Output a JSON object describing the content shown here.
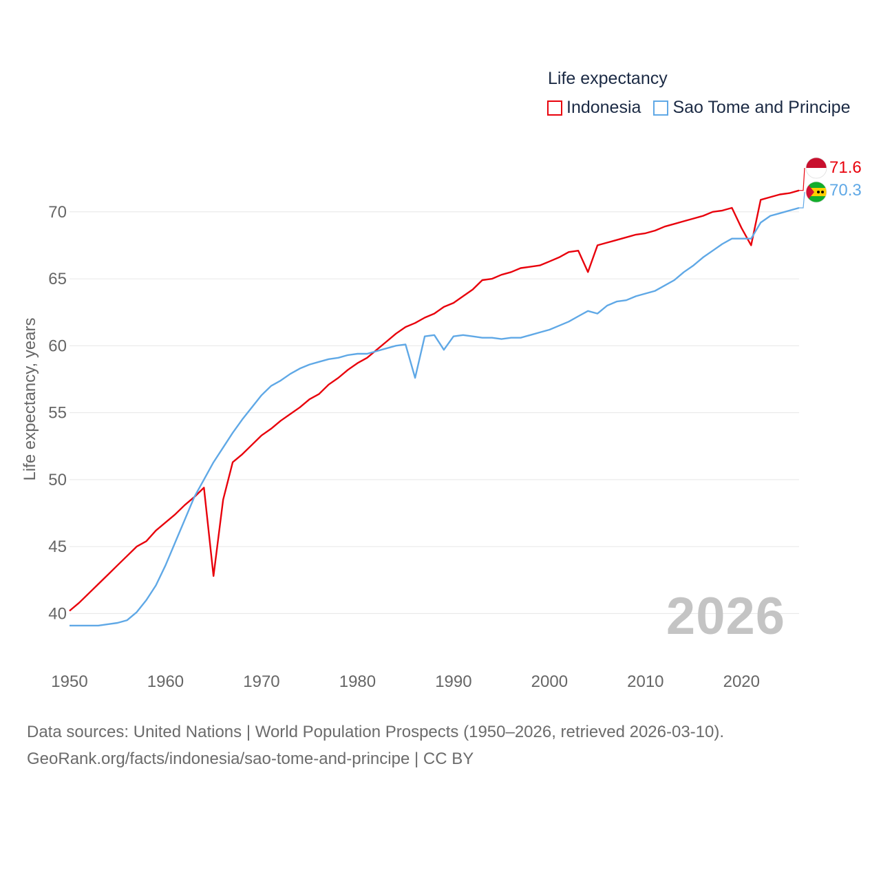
{
  "legend": {
    "title": "Life expectancy",
    "items": [
      "Indonesia",
      "Sao Tome and Principe"
    ]
  },
  "current_year": "2026",
  "footer": {
    "line1": "Data sources: United Nations | World Population Prospects (1950–2026, retrieved 2026-03-10).",
    "line2": "GeoRank.org/facts/indonesia/sao-tome-and-principe | CC BY"
  },
  "colors": {
    "indonesia": "#e8000b",
    "sao_tome": "#5fa8e6",
    "grid": "#e6e6e6",
    "axis_text": "#666666"
  },
  "chart_data": {
    "type": "line",
    "title": "Life expectancy",
    "xlabel": "",
    "ylabel": "Life expectancy, years",
    "xlim": [
      1950,
      2026
    ],
    "ylim": [
      37.5,
      74
    ],
    "x_ticks": [
      1950,
      1960,
      1970,
      1980,
      1990,
      2000,
      2010,
      2020
    ],
    "y_ticks": [
      40,
      45,
      50,
      55,
      60,
      65,
      70
    ],
    "grid": true,
    "legend_position": "top-right",
    "x": [
      1950,
      1951,
      1952,
      1953,
      1954,
      1955,
      1956,
      1957,
      1958,
      1959,
      1960,
      1961,
      1962,
      1963,
      1964,
      1965,
      1966,
      1967,
      1968,
      1969,
      1970,
      1971,
      1972,
      1973,
      1974,
      1975,
      1976,
      1977,
      1978,
      1979,
      1980,
      1981,
      1982,
      1983,
      1984,
      1985,
      1986,
      1987,
      1988,
      1989,
      1990,
      1991,
      1992,
      1993,
      1994,
      1995,
      1996,
      1997,
      1998,
      1999,
      2000,
      2001,
      2002,
      2003,
      2004,
      2005,
      2006,
      2007,
      2008,
      2009,
      2010,
      2011,
      2012,
      2013,
      2014,
      2015,
      2016,
      2017,
      2018,
      2019,
      2020,
      2021,
      2022,
      2023,
      2024,
      2025,
      2026
    ],
    "series": [
      {
        "name": "Indonesia",
        "color": "#e8000b",
        "end_label": "71.6",
        "values": [
          40.2,
          40.8,
          41.5,
          42.2,
          42.9,
          43.6,
          44.3,
          45.0,
          45.4,
          46.2,
          46.8,
          47.4,
          48.1,
          48.7,
          49.4,
          42.8,
          48.5,
          51.3,
          51.9,
          52.6,
          53.3,
          53.8,
          54.4,
          54.9,
          55.4,
          56.0,
          56.4,
          57.1,
          57.6,
          58.2,
          58.7,
          59.1,
          59.7,
          60.3,
          60.9,
          61.4,
          61.7,
          62.1,
          62.4,
          62.9,
          63.2,
          63.7,
          64.2,
          64.9,
          65.0,
          65.3,
          65.5,
          65.8,
          65.9,
          66.0,
          66.3,
          66.6,
          67.0,
          67.1,
          65.5,
          67.5,
          67.7,
          67.9,
          68.1,
          68.3,
          68.4,
          68.6,
          68.9,
          69.1,
          69.3,
          69.5,
          69.7,
          70.0,
          70.1,
          70.3,
          68.8,
          67.5,
          70.9,
          71.1,
          71.3,
          71.4,
          71.6
        ]
      },
      {
        "name": "Sao Tome and Principe",
        "color": "#5fa8e6",
        "end_label": "70.3",
        "values": [
          39.1,
          39.1,
          39.1,
          39.1,
          39.2,
          39.3,
          39.5,
          40.1,
          41.0,
          42.1,
          43.6,
          45.3,
          47.0,
          48.7,
          50.0,
          51.3,
          52.4,
          53.5,
          54.5,
          55.4,
          56.3,
          57.0,
          57.4,
          57.9,
          58.3,
          58.6,
          58.8,
          59.0,
          59.1,
          59.3,
          59.4,
          59.4,
          59.6,
          59.8,
          60.0,
          60.1,
          57.6,
          60.7,
          60.8,
          59.7,
          60.7,
          60.8,
          60.7,
          60.6,
          60.6,
          60.5,
          60.6,
          60.6,
          60.8,
          61.0,
          61.2,
          61.5,
          61.8,
          62.2,
          62.6,
          62.4,
          63.0,
          63.3,
          63.4,
          63.7,
          63.9,
          64.1,
          64.5,
          64.9,
          65.5,
          66.0,
          66.6,
          67.1,
          67.6,
          68.0,
          68.0,
          68.0,
          69.2,
          69.7,
          69.9,
          70.1,
          70.3
        ]
      }
    ]
  }
}
